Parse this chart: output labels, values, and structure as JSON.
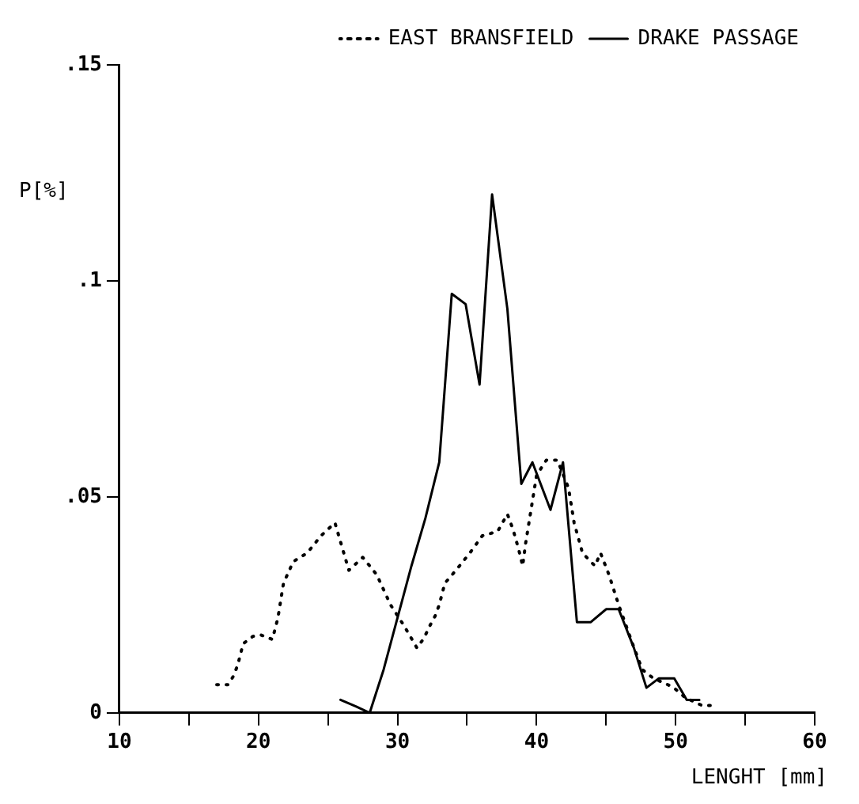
{
  "chart_data": {
    "type": "line",
    "xlabel": "LENGHT [mm]",
    "ylabel": "P[%]",
    "xlim": [
      10,
      60
    ],
    "xticks": [
      10,
      {
        "value": 15,
        "label": null
      },
      20,
      {
        "value": 25,
        "label": null
      },
      30,
      {
        "value": 35,
        "label": null
      },
      40,
      {
        "value": 45,
        "label": null
      },
      50,
      {
        "value": 55,
        "label": null
      },
      60
    ],
    "ylim": [
      0,
      0.15
    ],
    "yticks": [
      0,
      {
        "value": 0.05,
        "label": ".05"
      },
      {
        "value": 0.1,
        "label": ".1"
      },
      {
        "value": 0.15,
        "label": ".15"
      }
    ],
    "grid": false,
    "legend": "top right",
    "marker": "none",
    "series": [
      {
        "name": "EAST BRANSFIELD",
        "color": "#000000",
        "line_style": "dotted",
        "x": [
          17,
          17.8,
          18.2,
          18.5,
          18.9,
          19.6,
          20.2,
          21,
          21.4,
          21.8,
          22.5,
          23.5,
          24.5,
          25.5,
          26.5,
          27.5,
          28.5,
          29.5,
          30.5,
          31.4,
          31.9,
          32.3,
          32.7,
          33,
          33.4,
          34.2,
          35.2,
          36.1,
          37.2,
          37.9,
          38.3,
          38.7,
          39,
          39.2,
          39.6,
          40,
          40.7,
          41.5,
          42.3,
          42.7,
          43.3,
          44.2,
          44.6,
          45.2,
          45.9,
          46.9,
          47.6,
          48.4,
          49.8,
          50.7,
          51.9,
          52.8
        ],
        "values": [
          0.0065,
          0.0065,
          0.0085,
          0.011,
          0.016,
          0.0177,
          0.018,
          0.017,
          0.022,
          0.03,
          0.035,
          0.037,
          0.041,
          0.044,
          0.033,
          0.036,
          0.032,
          0.025,
          0.02,
          0.015,
          0.0173,
          0.02,
          0.0224,
          0.025,
          0.03,
          0.033,
          0.037,
          0.041,
          0.042,
          0.046,
          0.0425,
          0.038,
          0.034,
          0.039,
          0.047,
          0.055,
          0.0585,
          0.0585,
          0.052,
          0.044,
          0.037,
          0.034,
          0.037,
          0.032,
          0.025,
          0.016,
          0.01,
          0.008,
          0.006,
          0.0035,
          0.0017,
          0.0017
        ]
      },
      {
        "name": "DRAKE PASSAGE",
        "color": "#000000",
        "line_style": "solid",
        "x": [
          25.9,
          27,
          28,
          29,
          30,
          31,
          32,
          33,
          33.9,
          34.9,
          35.9,
          36.8,
          37.9,
          38.9,
          39.7,
          41,
          41.9,
          42.9,
          43.9,
          45,
          45.9,
          47,
          47.9,
          48.8,
          49.9,
          50.8,
          51.7
        ],
        "values": [
          0.003,
          0.0015,
          0,
          0.01,
          0.022,
          0.034,
          0.045,
          0.058,
          0.097,
          0.0946,
          0.076,
          0.12,
          0.0935,
          0.053,
          0.058,
          0.047,
          0.058,
          0.021,
          0.021,
          0.024,
          0.024,
          0.015,
          0.0058,
          0.008,
          0.008,
          0.003,
          0.003
        ]
      }
    ]
  }
}
